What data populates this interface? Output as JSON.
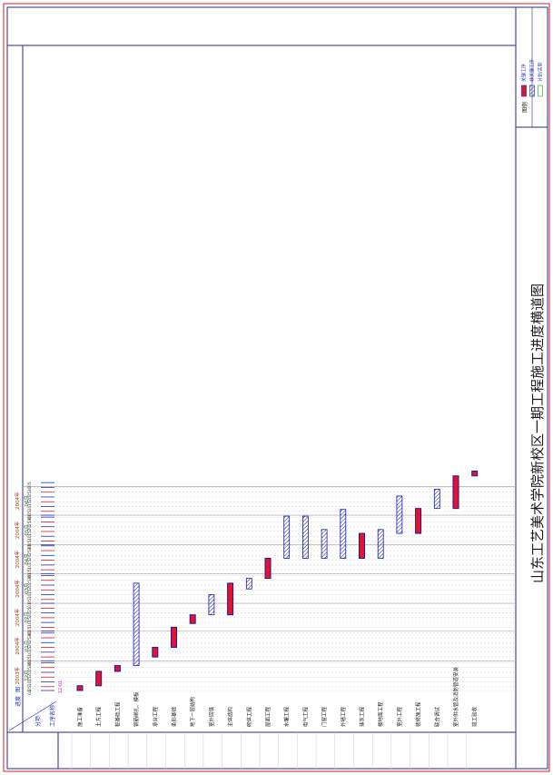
{
  "chart_data": {
    "type": "gantt",
    "title": "山东工艺美术学院新校区一期工程施工进度横道图",
    "header": {
      "corner_top": "进度",
      "corner_right": "图",
      "corner_bottom": "分项",
      "item_column": "工序名称"
    },
    "start_marker": "12-01",
    "months": [
      {
        "year": "2003年",
        "month": "12月"
      },
      {
        "year": "2004年",
        "month": "01月"
      },
      {
        "year": "2004年",
        "month": "02月"
      },
      {
        "year": "2004年",
        "month": "03月"
      },
      {
        "year": "2004年",
        "month": "04月"
      },
      {
        "year": "2004年",
        "month": "05月"
      },
      {
        "year": "2004年",
        "month": "06月"
      }
    ],
    "day_ticks": [
      "01",
      "05",
      "10",
      "15",
      "20",
      "25",
      "30"
    ],
    "end_tick": "05",
    "tasks": [
      {
        "name": "施工准备",
        "start": 0,
        "end": 5,
        "type": "critical"
      },
      {
        "name": "土方工程",
        "start": 5,
        "end": 20,
        "type": "critical"
      },
      {
        "name": "桩基础工程",
        "start": 20,
        "end": 26,
        "type": "critical"
      },
      {
        "name": "钢筋绑扎、模板",
        "start": 26,
        "end": 112,
        "type": "noncritical"
      },
      {
        "name": "承台工程",
        "start": 35,
        "end": 45,
        "type": "critical"
      },
      {
        "name": "条形基础",
        "start": 45,
        "end": 66,
        "type": "critical"
      },
      {
        "name": "地下一层结构",
        "start": 70,
        "end": 79,
        "type": "critical"
      },
      {
        "name": "室外回填",
        "start": 79,
        "end": 100,
        "type": "noncritical"
      },
      {
        "name": "主体结构",
        "start": 79,
        "end": 112,
        "type": "critical"
      },
      {
        "name": "砌体工程",
        "start": 106,
        "end": 117,
        "type": "noncritical"
      },
      {
        "name": "屋面工程",
        "start": 117,
        "end": 138,
        "type": "critical"
      },
      {
        "name": "水暖工程",
        "start": 138,
        "end": 182,
        "type": "noncritical"
      },
      {
        "name": "电气工程",
        "start": 138,
        "end": 182,
        "type": "noncritical"
      },
      {
        "name": "门窗工程",
        "start": 138,
        "end": 168,
        "type": "noncritical"
      },
      {
        "name": "外墙工程",
        "start": 138,
        "end": 189,
        "type": "noncritical"
      },
      {
        "name": "抹灰工程",
        "start": 138,
        "end": 164,
        "type": "critical"
      },
      {
        "name": "楼地面工程",
        "start": 138,
        "end": 168,
        "type": "noncritical"
      },
      {
        "name": "室外工程",
        "start": 164,
        "end": 203,
        "type": "noncritical"
      },
      {
        "name": "装修施工程",
        "start": 164,
        "end": 190,
        "type": "critical"
      },
      {
        "name": "联合调试",
        "start": 190,
        "end": 210,
        "type": "noncritical"
      },
      {
        "name": "室外供水管及消防管道安装",
        "start": 190,
        "end": 224,
        "type": "critical"
      },
      {
        "name": "竣工验收",
        "start": 224,
        "end": 229,
        "type": "critical"
      }
    ],
    "legend": {
      "title": "图例",
      "items": [
        {
          "label": "关键工序",
          "type": "critical"
        },
        {
          "label": "非关键工序",
          "type": "noncritical"
        },
        {
          "label": "计划/实际",
          "type": "plan"
        }
      ]
    },
    "colors": {
      "critical_fill": "#e8102a",
      "critical_border": "#1a1aa0",
      "noncritical_stroke": "#1a1ab0",
      "frame": "#d81b2a",
      "grid": "#c8c8c8",
      "month_year": "#c03030",
      "month_label": "#207020",
      "tick_red": "#d81b2a",
      "tick_blue": "#2030c0",
      "start_marker": "#d020d0"
    }
  }
}
